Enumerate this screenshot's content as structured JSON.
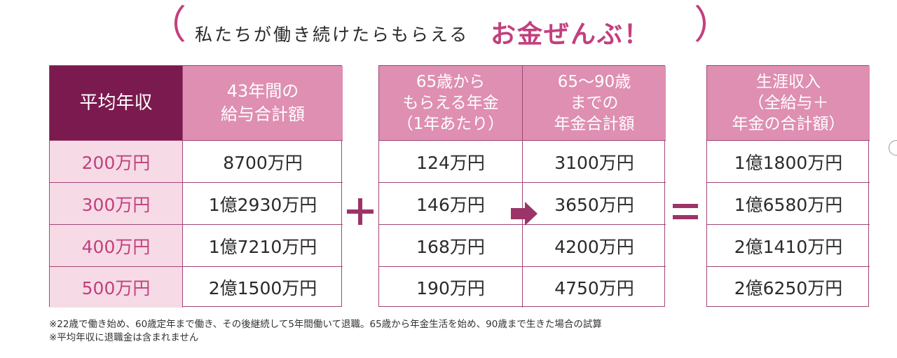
{
  "title": {
    "main": "私たちが働き続けたらもらえる",
    "accent": "お金ぜんぶ！",
    "paren_left": "（",
    "paren_right": "）"
  },
  "table_left": {
    "header_salary": "平均年収",
    "header_total": "43年間の\n給与合計額",
    "rows": [
      {
        "salary": "200万円",
        "total": "8700万円"
      },
      {
        "salary": "300万円",
        "total": "1億2930万円"
      },
      {
        "salary": "400万円",
        "total": "1億7210万円"
      },
      {
        "salary": "500万円",
        "total": "2億1500万円"
      }
    ]
  },
  "table_middle": {
    "header_pension": "65歳から\nもらえる年金\n（1年あたり）",
    "header_pension_total": "65〜90歳\nまでの\n年金合計額",
    "rows": [
      {
        "pension": "124万円",
        "pension_total": "3100万円"
      },
      {
        "pension": "146万円",
        "pension_total": "3650万円"
      },
      {
        "pension": "168万円",
        "pension_total": "4200万円"
      },
      {
        "pension": "190万円",
        "pension_total": "4750万円"
      }
    ]
  },
  "table_right": {
    "header_lifetime": "生涯収入\n（全給与＋\n年金の合計額）",
    "rows": [
      {
        "lifetime": "1億1800万円"
      },
      {
        "lifetime": "1億6580万円"
      },
      {
        "lifetime": "2億1410万円"
      },
      {
        "lifetime": "2億6250万円"
      }
    ]
  },
  "notes": [
    "※22歳で働き始め、60歳定年まで働き、その後継続して5年間働いて退職。65歳から年金生活を始め、90歳まで生きた場合の試算",
    "※平均年収に退職金は含まれません"
  ],
  "colors": {
    "accent": "#c2407e",
    "header_dark": "#7a1a4e",
    "header_pink": "#de8fb2",
    "salary_bg": "#f6dbe6",
    "border": "#a24676",
    "operator": "#9c3468"
  },
  "icons": {
    "plus": "plus-icon",
    "equals": "equals-icon",
    "arrow": "right-arrow-icon"
  }
}
